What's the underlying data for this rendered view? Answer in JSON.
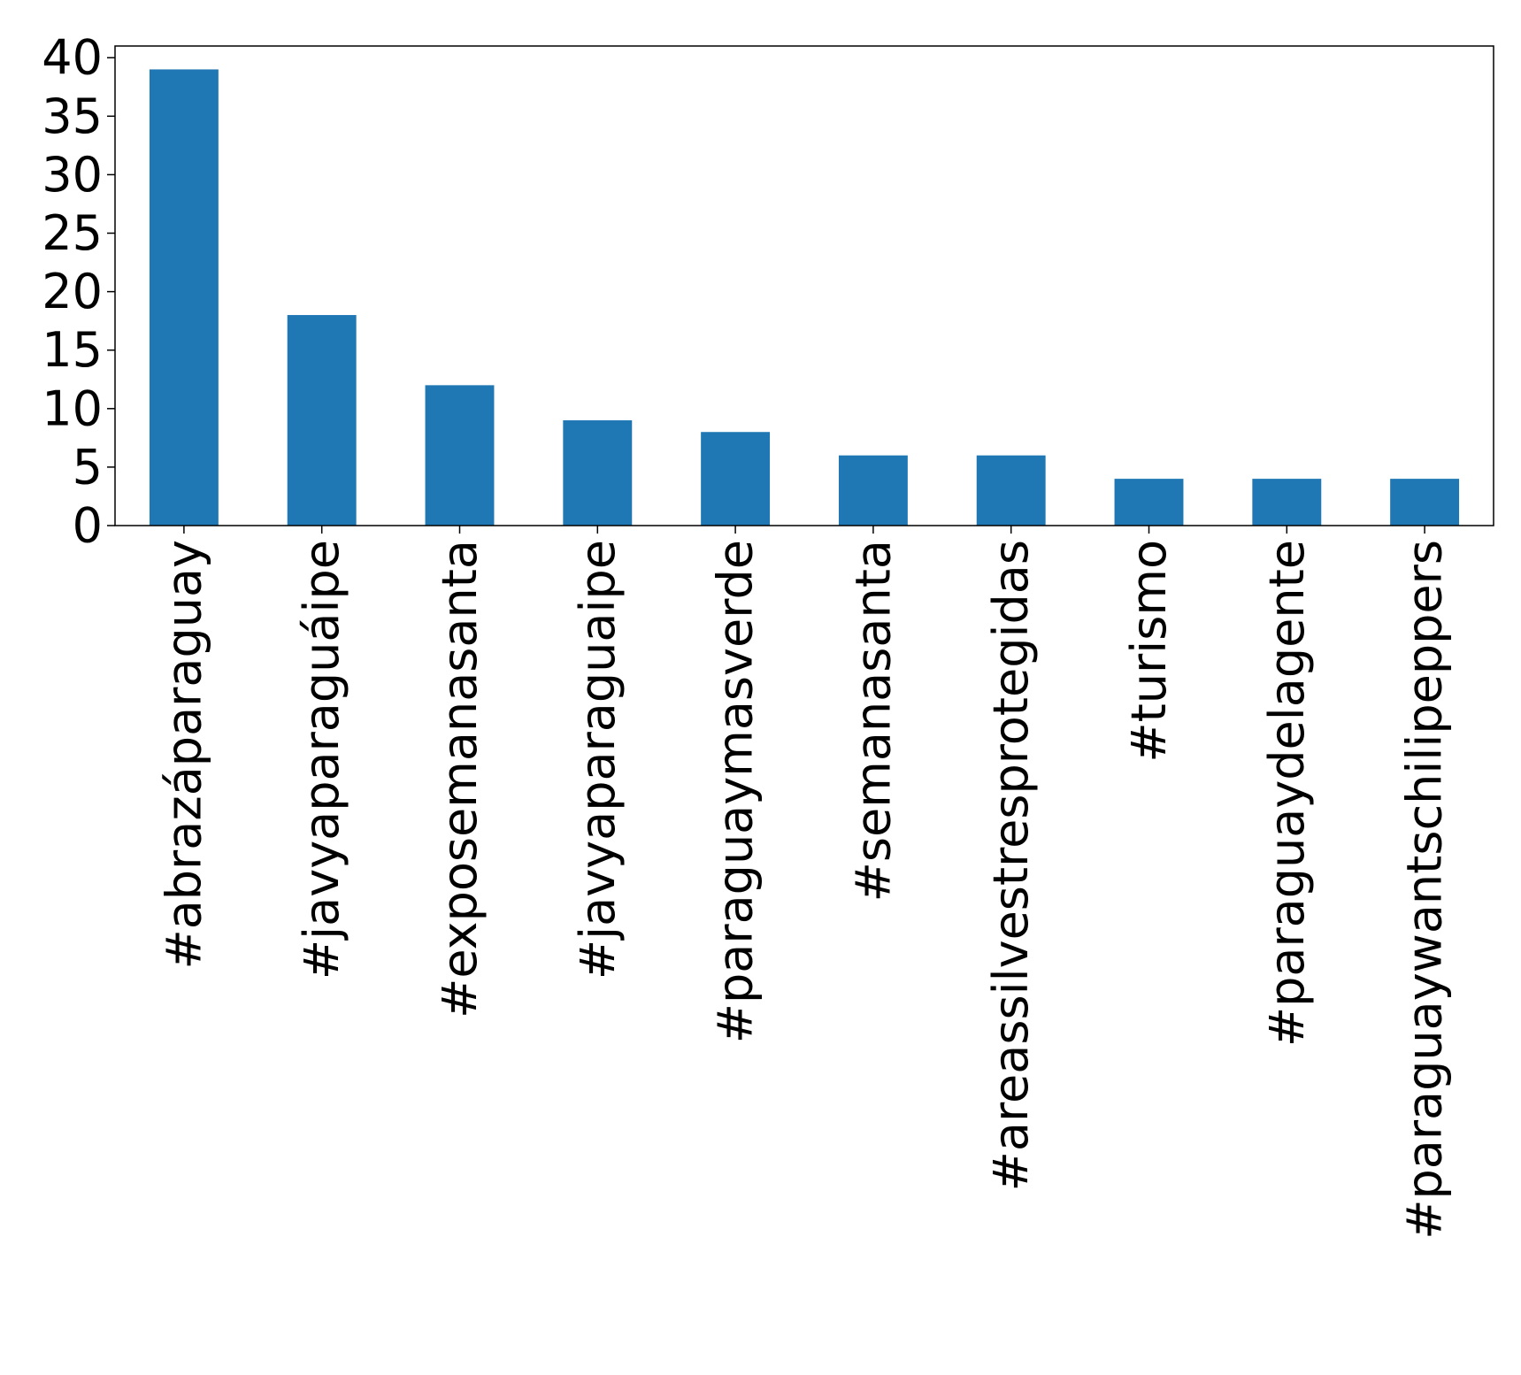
{
  "chart_data": {
    "type": "bar",
    "title": "",
    "xlabel": "",
    "ylabel": "",
    "categories": [
      "#abrazáparaguay",
      "#javyaparaguáipe",
      "#exposemanasanta",
      "#javyaparaguaipe",
      "#paraguaymasverde",
      "#semanasanta",
      "#areassilvestresprotegidas",
      "#turismo",
      "#paraguaydelagente",
      "#paraguaywantschilipeppers"
    ],
    "values": [
      39,
      18,
      12,
      9,
      8,
      6,
      6,
      4,
      4,
      4
    ],
    "ylim": [
      0,
      41
    ],
    "yticks": [
      0,
      5,
      10,
      15,
      20,
      25,
      30,
      35,
      40
    ],
    "grid": false,
    "legend": "none",
    "bar_color": "#1f77b4"
  }
}
